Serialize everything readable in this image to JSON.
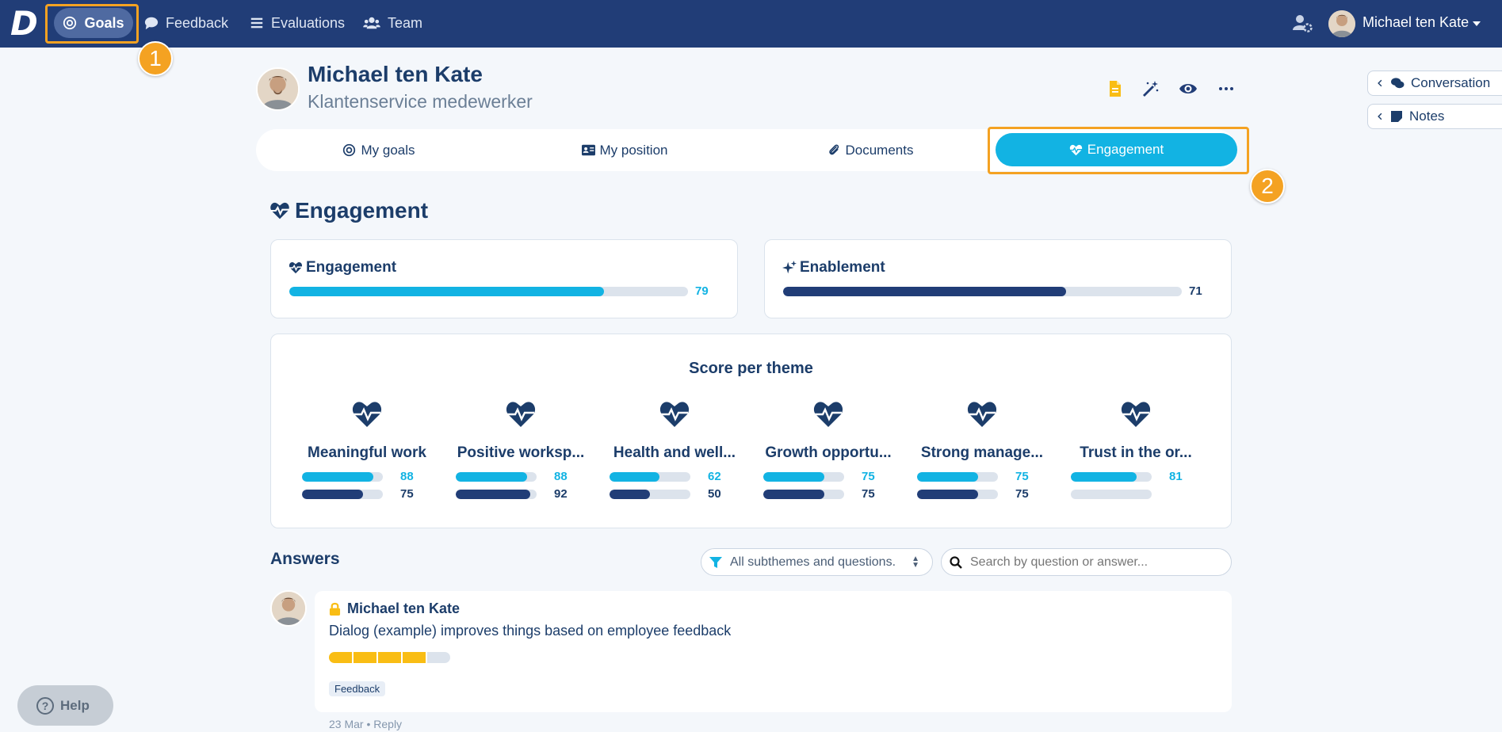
{
  "nav": {
    "logo": "D",
    "goals": "Goals",
    "feedback": "Feedback",
    "evaluations": "Evaluations",
    "team": "Team",
    "user_name": "Michael ten Kate"
  },
  "callouts": {
    "one": "1",
    "two": "2"
  },
  "profile": {
    "name": "Michael ten Kate",
    "role": "Klantenservice medewerker"
  },
  "tabs": {
    "my_goals": "My goals",
    "my_position": "My position",
    "documents": "Documents",
    "engagement": "Engagement"
  },
  "side": {
    "conversation": "Conversation",
    "notes": "Notes"
  },
  "engagement": {
    "title": "Engagement",
    "engagement_label": "Engagement",
    "engagement_value": "79",
    "engagement_score": 79,
    "enablement_label": "Enablement",
    "enablement_value": "71",
    "enablement_score": 71
  },
  "themes": {
    "title": "Score per theme",
    "items": [
      {
        "name": "Meaningful work",
        "a": "88",
        "b": "75",
        "a_score": 88,
        "b_score": 75
      },
      {
        "name": "Positive worksp...",
        "a": "88",
        "b": "92",
        "a_score": 88,
        "b_score": 92
      },
      {
        "name": "Health and well...",
        "a": "62",
        "b": "50",
        "a_score": 62,
        "b_score": 50
      },
      {
        "name": "Growth opportu...",
        "a": "75",
        "b": "75",
        "a_score": 75,
        "b_score": 75
      },
      {
        "name": "Strong manage...",
        "a": "75",
        "b": "75",
        "a_score": 75,
        "b_score": 75
      },
      {
        "name": "Trust in the or...",
        "a": "81",
        "b": "",
        "a_score": 81,
        "b_score": 0
      }
    ]
  },
  "answers": {
    "title": "Answers",
    "filter": "All subthemes and questions.",
    "search_placeholder": "Search by question or answer...",
    "item": {
      "author": "Michael ten Kate",
      "text": "Dialog (example) improves things based on employee feedback",
      "rating": 4,
      "rating_max": 5,
      "tag": "Feedback",
      "date": "23 Mar",
      "reply": "Reply"
    }
  },
  "help": "Help",
  "colors": {
    "topbar": "#213d77",
    "cyan": "#12b3e3",
    "navy": "#213d77",
    "highlight": "#f4a222",
    "rating": "#f9bd14"
  }
}
